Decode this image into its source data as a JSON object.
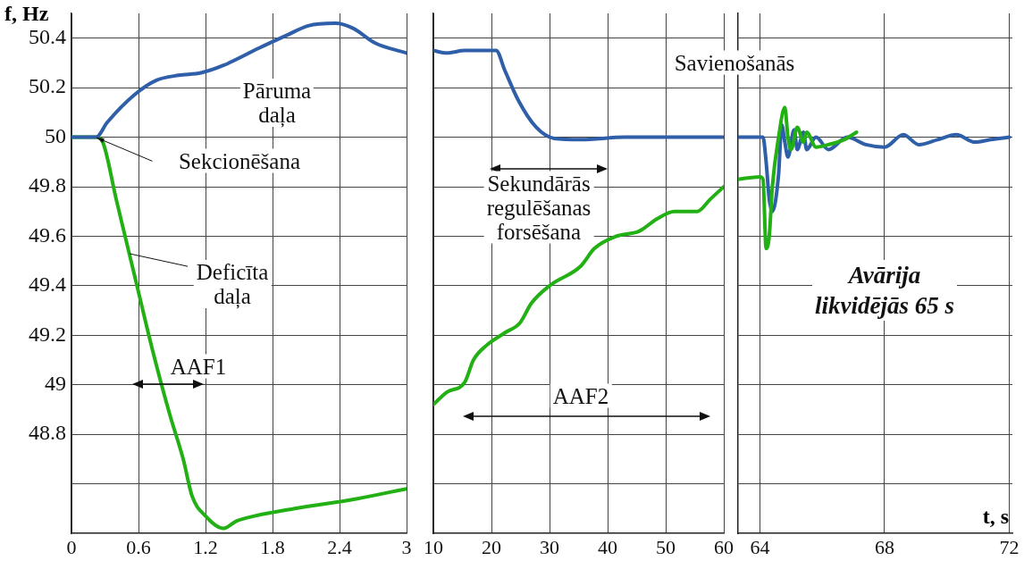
{
  "chart_data": [
    {
      "type": "line",
      "ylabel": "f, Hz",
      "xlim": [
        0,
        3
      ],
      "ylim": [
        48.4,
        50.5
      ],
      "grid": true,
      "xticks": [
        0,
        0.6,
        1.2,
        1.8,
        2.4,
        3
      ],
      "yticks": [
        {
          "value": 48.6,
          "label": null
        },
        48.8,
        49,
        49.2,
        49.4,
        49.6,
        49.8,
        50,
        50.2,
        50.4
      ],
      "series": [
        {
          "color": "#2f5fa8",
          "x": [
            0,
            0.22,
            0.32,
            0.56,
            0.76,
            0.96,
            1.16,
            1.36,
            1.68,
            1.92,
            2.12,
            2.36,
            2.52,
            2.72,
            3
          ],
          "values": [
            50,
            50,
            50.06,
            50.17,
            50.23,
            50.25,
            50.26,
            50.29,
            50.36,
            50.41,
            50.45,
            50.46,
            50.44,
            50.38,
            50.34
          ]
        },
        {
          "color": "#22b014",
          "x": [
            0,
            0.22,
            0.28,
            0.4,
            0.56,
            0.72,
            0.88,
            1.0,
            1.08,
            1.2,
            1.36,
            1.48,
            1.64,
            2.0,
            2.56,
            3
          ],
          "values": [
            50,
            50,
            49.98,
            49.75,
            49.45,
            49.15,
            48.88,
            48.7,
            48.55,
            48.47,
            48.42,
            48.45,
            48.47,
            48.5,
            48.54,
            48.58
          ]
        }
      ],
      "annotations": [
        "Pāruma\ndaļa",
        {
          "text": "Sekcionēšana",
          "x": 0.22,
          "y": 50
        },
        {
          "text": "Deficīta\ndaļa",
          "x": 0.52,
          "y": 49.53
        },
        "AAF1"
      ]
    },
    {
      "type": "line",
      "xlim": [
        10,
        60
      ],
      "ylim": [
        48.4,
        50.5
      ],
      "grid": true,
      "tick_labels": "x",
      "xticks": [
        10,
        20,
        30,
        40,
        50,
        60
      ],
      "yticks": [
        48.6,
        48.8,
        49,
        49.2,
        49.4,
        49.6,
        49.8,
        50,
        50.2,
        50.4
      ],
      "series": [
        {
          "color": "#2f5fa8",
          "x": [
            10,
            12.3,
            15.4,
            20.8,
            22.3,
            24.6,
            27.7,
            30.8,
            35.4,
            43,
            60
          ],
          "values": [
            50.35,
            50.34,
            50.35,
            50.35,
            50.27,
            50.15,
            50.04,
            49.995,
            49.99,
            50,
            50
          ]
        },
        {
          "color": "#22b014",
          "x": [
            10,
            12.3,
            15.4,
            16.9,
            19.2,
            22.3,
            24.9,
            26.9,
            30,
            35.4,
            37.7,
            41.5,
            45.4,
            48.5,
            51.5,
            55.4,
            57.7,
            60
          ],
          "values": [
            48.92,
            48.97,
            49.01,
            49.1,
            49.16,
            49.21,
            49.25,
            49.33,
            49.4,
            49.48,
            49.55,
            49.6,
            49.62,
            49.67,
            49.7,
            49.7,
            49.75,
            49.8
          ]
        }
      ],
      "annotations": [
        "Sekundārās\nregulēšanas\nforsēšana",
        "AAF2"
      ]
    },
    {
      "type": "line",
      "xlabel": "t, s",
      "xlim": [
        63.3,
        72.1
      ],
      "ylim": [
        48.4,
        50.5
      ],
      "grid": true,
      "tick_labels": "x",
      "xticks": [
        64,
        68,
        72
      ],
      "yticks": [
        48.6,
        48.8,
        49,
        49.2,
        49.4,
        49.6,
        49.8,
        50,
        50.2,
        50.4
      ],
      "series": [
        {
          "color": "#22b014",
          "x": [
            63.3,
            64,
            64.1,
            64.2,
            64.3,
            64.4,
            64.6,
            64.8,
            64.9,
            65.0,
            65.2,
            65.4,
            65.5,
            65.8,
            66.2,
            66.7,
            67.1
          ],
          "values": [
            49.83,
            49.84,
            49.83,
            49.55,
            49.6,
            49.8,
            50.0,
            50.12,
            50.0,
            49.95,
            50.04,
            49.98,
            50.02,
            49.96,
            49.97,
            49.99,
            50.02
          ]
        },
        {
          "color": "#2f5fa8",
          "x": [
            63.3,
            64.1,
            64.2,
            64.3,
            64.4,
            64.6,
            64.7,
            64.8,
            64.9,
            65.1,
            65.2,
            65.4,
            65.5,
            65.8,
            66.2,
            66.8,
            67.4,
            68,
            68.6,
            69.1,
            69.7,
            70.3,
            70.9,
            71.4,
            72
          ],
          "values": [
            50,
            50,
            49.9,
            49.75,
            49.7,
            49.85,
            50.05,
            49.98,
            49.92,
            50.03,
            49.95,
            50.02,
            49.95,
            50,
            49.95,
            50,
            49.97,
            49.96,
            50.01,
            49.97,
            49.99,
            50.01,
            49.98,
            49.99,
            50
          ]
        }
      ],
      "annotations": [
        "Savienošanās",
        "Avārija\nlikvidējās 65 s"
      ]
    }
  ]
}
